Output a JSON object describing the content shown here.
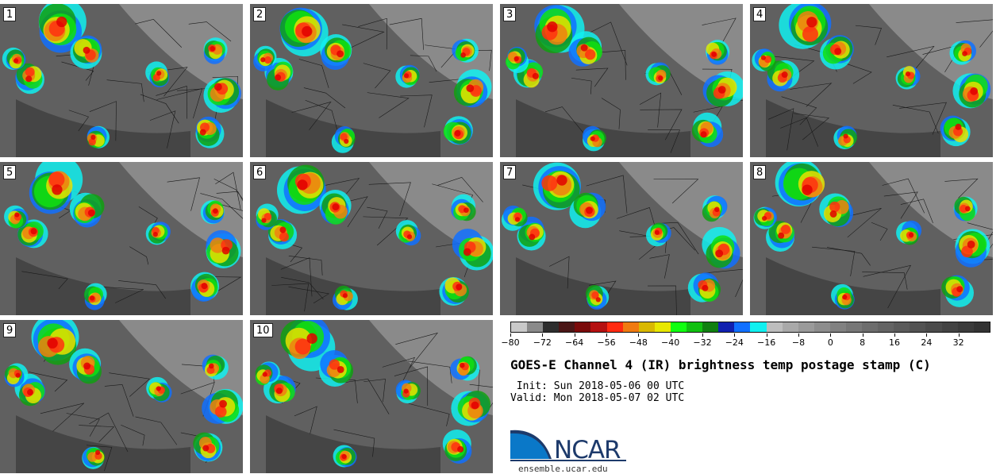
{
  "panels": [
    {
      "label": "1"
    },
    {
      "label": "2"
    },
    {
      "label": "3"
    },
    {
      "label": "4"
    },
    {
      "label": "5"
    },
    {
      "label": "6"
    },
    {
      "label": "7"
    },
    {
      "label": "8"
    },
    {
      "label": "9"
    },
    {
      "label": "10"
    }
  ],
  "colorbar": {
    "colors": [
      "#c9c9c9",
      "#8a8a8a",
      "#2e2e2e",
      "#4a1616",
      "#7a0a0a",
      "#b51010",
      "#ff2a10",
      "#f07a10",
      "#d9b800",
      "#e8e800",
      "#10ff10",
      "#10c010",
      "#108010",
      "#1020b0",
      "#1070ff",
      "#10f0f0",
      "#bdbdbd",
      "#a9a9a9",
      "#9a9a9a",
      "#8d8d8d",
      "#818181",
      "#777777",
      "#6d6d6d",
      "#646464",
      "#5b5b5b",
      "#535353",
      "#4b4b4b",
      "#434343",
      "#3b3b3b",
      "#333333"
    ],
    "ticks": [
      "−80",
      "−72",
      "−64",
      "−56",
      "−48",
      "−40",
      "−32",
      "−24",
      "−16",
      "−8",
      "0",
      "8",
      "16",
      "24",
      "32"
    ]
  },
  "title": "GOES-E Channel 4 (IR) brightness temp postage stamp (C)",
  "init": " Init: Sun 2018-05-06 00 UTC",
  "valid": "Valid: Mon 2018-05-07 02 UTC",
  "logo": {
    "text": "NCAR",
    "brand_color": "#1d3a6b",
    "swoosh_color": "#0a78c8"
  },
  "site": "ensemble.ucar.edu"
}
